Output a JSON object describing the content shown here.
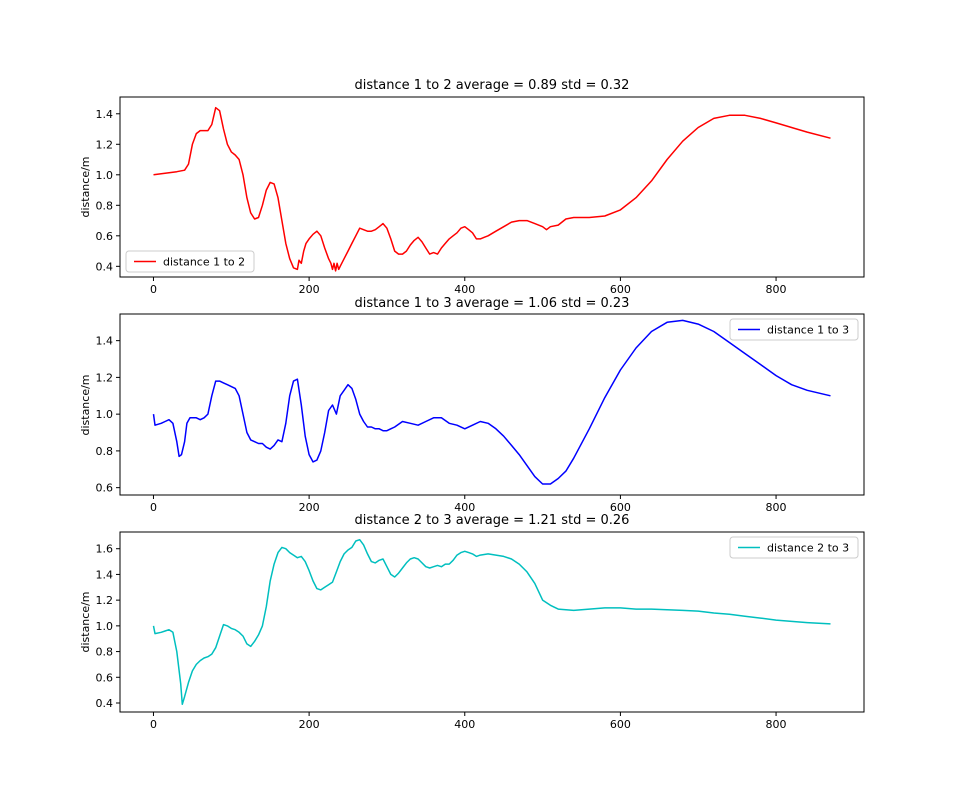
{
  "chart_data": [
    {
      "type": "line",
      "title": "distance 1 to 2 average = 0.89 std = 0.32",
      "xlabel": "",
      "ylabel": "distance/m",
      "xlim": [
        -43,
        913
      ],
      "ylim": [
        0.33,
        1.51
      ],
      "xticks": [
        "0",
        "200",
        "400",
        "600",
        "800"
      ],
      "yticks": [
        "0.4",
        "0.6",
        "0.8",
        "1.0",
        "1.2",
        "1.4"
      ],
      "legend": "lower-left",
      "grid": false,
      "series": [
        {
          "name": "distance 1 to 2",
          "color": "#ff0000",
          "x": [
            0,
            15,
            30,
            40,
            45,
            50,
            55,
            60,
            65,
            70,
            75,
            80,
            85,
            90,
            95,
            100,
            105,
            110,
            115,
            120,
            125,
            130,
            135,
            140,
            145,
            150,
            155,
            160,
            165,
            170,
            175,
            180,
            185,
            187,
            190,
            193,
            196,
            200,
            205,
            210,
            215,
            220,
            225,
            228,
            230,
            232,
            234,
            236,
            238,
            240,
            245,
            250,
            255,
            260,
            265,
            270,
            275,
            280,
            285,
            290,
            295,
            300,
            305,
            310,
            315,
            320,
            325,
            330,
            335,
            340,
            345,
            350,
            355,
            360,
            365,
            370,
            375,
            380,
            385,
            390,
            395,
            400,
            405,
            410,
            415,
            420,
            425,
            430,
            440,
            450,
            460,
            470,
            480,
            490,
            500,
            505,
            510,
            520,
            530,
            540,
            560,
            580,
            600,
            620,
            640,
            660,
            680,
            700,
            720,
            740,
            760,
            780,
            800,
            820,
            840,
            870
          ],
          "y": [
            1.0,
            1.01,
            1.02,
            1.03,
            1.07,
            1.2,
            1.27,
            1.29,
            1.29,
            1.29,
            1.33,
            1.44,
            1.42,
            1.3,
            1.2,
            1.15,
            1.13,
            1.1,
            1.0,
            0.85,
            0.75,
            0.71,
            0.72,
            0.8,
            0.9,
            0.95,
            0.94,
            0.85,
            0.7,
            0.55,
            0.45,
            0.39,
            0.38,
            0.44,
            0.42,
            0.5,
            0.55,
            0.58,
            0.61,
            0.63,
            0.6,
            0.52,
            0.45,
            0.42,
            0.38,
            0.42,
            0.37,
            0.42,
            0.38,
            0.4,
            0.45,
            0.5,
            0.55,
            0.6,
            0.65,
            0.64,
            0.63,
            0.63,
            0.64,
            0.66,
            0.68,
            0.65,
            0.58,
            0.5,
            0.48,
            0.48,
            0.5,
            0.54,
            0.57,
            0.59,
            0.56,
            0.52,
            0.48,
            0.49,
            0.48,
            0.52,
            0.55,
            0.58,
            0.6,
            0.62,
            0.65,
            0.66,
            0.64,
            0.62,
            0.58,
            0.58,
            0.59,
            0.6,
            0.63,
            0.66,
            0.69,
            0.7,
            0.7,
            0.68,
            0.66,
            0.64,
            0.66,
            0.67,
            0.71,
            0.72,
            0.72,
            0.73,
            0.77,
            0.85,
            0.96,
            1.1,
            1.22,
            1.31,
            1.37,
            1.39,
            1.39,
            1.37,
            1.34,
            1.31,
            1.28,
            1.24
          ]
        }
      ]
    },
    {
      "type": "line",
      "title": "distance 1 to 3 average = 1.06 std = 0.23",
      "xlabel": "",
      "ylabel": "distance/m",
      "xlim": [
        -43,
        913
      ],
      "ylim": [
        0.56,
        1.545
      ],
      "xticks": [
        "0",
        "200",
        "400",
        "600",
        "800"
      ],
      "yticks": [
        "0.6",
        "0.8",
        "1.0",
        "1.2",
        "1.4"
      ],
      "legend": "upper-right",
      "grid": false,
      "series": [
        {
          "name": "distance 1 to 3",
          "color": "#0000ff",
          "x": [
            0,
            2,
            10,
            15,
            20,
            25,
            30,
            33,
            36,
            40,
            43,
            47,
            50,
            55,
            60,
            65,
            70,
            75,
            80,
            85,
            90,
            95,
            100,
            105,
            110,
            115,
            120,
            125,
            130,
            135,
            140,
            145,
            150,
            155,
            160,
            165,
            170,
            175,
            180,
            185,
            190,
            195,
            200,
            205,
            210,
            215,
            220,
            225,
            230,
            235,
            240,
            245,
            250,
            255,
            260,
            265,
            270,
            275,
            280,
            285,
            290,
            295,
            300,
            305,
            310,
            320,
            330,
            340,
            350,
            360,
            370,
            380,
            390,
            400,
            410,
            420,
            430,
            440,
            450,
            460,
            470,
            480,
            490,
            500,
            510,
            520,
            530,
            540,
            560,
            580,
            600,
            620,
            640,
            660,
            680,
            700,
            720,
            740,
            760,
            780,
            800,
            820,
            840,
            870
          ],
          "y": [
            1.0,
            0.94,
            0.95,
            0.96,
            0.97,
            0.95,
            0.85,
            0.77,
            0.78,
            0.85,
            0.95,
            0.98,
            0.98,
            0.98,
            0.97,
            0.98,
            1.0,
            1.1,
            1.18,
            1.18,
            1.17,
            1.16,
            1.15,
            1.14,
            1.1,
            1.0,
            0.9,
            0.86,
            0.85,
            0.84,
            0.84,
            0.82,
            0.81,
            0.83,
            0.86,
            0.85,
            0.95,
            1.1,
            1.18,
            1.19,
            1.05,
            0.88,
            0.78,
            0.74,
            0.75,
            0.8,
            0.9,
            1.02,
            1.05,
            1.0,
            1.1,
            1.13,
            1.16,
            1.14,
            1.08,
            1.0,
            0.96,
            0.93,
            0.93,
            0.92,
            0.92,
            0.91,
            0.91,
            0.92,
            0.93,
            0.96,
            0.95,
            0.94,
            0.96,
            0.98,
            0.98,
            0.95,
            0.94,
            0.92,
            0.94,
            0.96,
            0.95,
            0.92,
            0.88,
            0.83,
            0.78,
            0.72,
            0.66,
            0.62,
            0.62,
            0.65,
            0.69,
            0.76,
            0.92,
            1.09,
            1.24,
            1.36,
            1.45,
            1.5,
            1.51,
            1.49,
            1.45,
            1.39,
            1.33,
            1.27,
            1.21,
            1.16,
            1.13,
            1.1
          ]
        }
      ]
    },
    {
      "type": "line",
      "title": "distance 2 to 3 average = 1.21 std = 0.26",
      "xlabel": "",
      "ylabel": "distance/m",
      "xlim": [
        -43,
        913
      ],
      "ylim": [
        0.33,
        1.73
      ],
      "xticks": [
        "0",
        "200",
        "400",
        "600",
        "800"
      ],
      "yticks": [
        "0.4",
        "0.6",
        "0.8",
        "1.0",
        "1.2",
        "1.4",
        "1.6"
      ],
      "legend": "upper-right",
      "grid": false,
      "series": [
        {
          "name": "distance 2 to 3",
          "color": "#00bfbf",
          "x": [
            0,
            2,
            10,
            15,
            20,
            25,
            30,
            35,
            37,
            40,
            45,
            50,
            55,
            60,
            65,
            70,
            75,
            80,
            85,
            90,
            95,
            100,
            105,
            110,
            115,
            120,
            125,
            130,
            135,
            140,
            145,
            150,
            155,
            160,
            165,
            170,
            175,
            180,
            185,
            190,
            195,
            200,
            205,
            210,
            215,
            220,
            225,
            230,
            235,
            240,
            245,
            250,
            255,
            260,
            265,
            270,
            275,
            280,
            285,
            290,
            295,
            300,
            305,
            310,
            315,
            320,
            325,
            330,
            335,
            340,
            345,
            350,
            355,
            360,
            365,
            370,
            375,
            380,
            385,
            390,
            395,
            400,
            405,
            410,
            415,
            420,
            430,
            440,
            450,
            460,
            470,
            480,
            490,
            500,
            510,
            520,
            540,
            560,
            580,
            600,
            620,
            640,
            660,
            680,
            700,
            720,
            740,
            760,
            780,
            800,
            820,
            840,
            870
          ],
          "y": [
            1.0,
            0.94,
            0.95,
            0.96,
            0.97,
            0.95,
            0.8,
            0.55,
            0.39,
            0.45,
            0.56,
            0.65,
            0.7,
            0.73,
            0.75,
            0.76,
            0.78,
            0.83,
            0.92,
            1.01,
            1.0,
            0.98,
            0.97,
            0.95,
            0.92,
            0.86,
            0.84,
            0.88,
            0.93,
            1.0,
            1.15,
            1.35,
            1.48,
            1.57,
            1.61,
            1.6,
            1.57,
            1.55,
            1.53,
            1.54,
            1.5,
            1.43,
            1.35,
            1.29,
            1.28,
            1.3,
            1.32,
            1.34,
            1.42,
            1.5,
            1.56,
            1.59,
            1.61,
            1.66,
            1.67,
            1.63,
            1.56,
            1.5,
            1.49,
            1.51,
            1.52,
            1.46,
            1.4,
            1.38,
            1.41,
            1.45,
            1.49,
            1.52,
            1.53,
            1.52,
            1.49,
            1.46,
            1.45,
            1.46,
            1.47,
            1.46,
            1.48,
            1.48,
            1.51,
            1.55,
            1.57,
            1.58,
            1.57,
            1.56,
            1.54,
            1.55,
            1.56,
            1.55,
            1.54,
            1.52,
            1.48,
            1.42,
            1.33,
            1.2,
            1.16,
            1.13,
            1.12,
            1.13,
            1.14,
            1.14,
            1.13,
            1.13,
            1.125,
            1.12,
            1.115,
            1.1,
            1.09,
            1.075,
            1.06,
            1.045,
            1.035,
            1.025,
            1.015
          ]
        }
      ]
    }
  ]
}
